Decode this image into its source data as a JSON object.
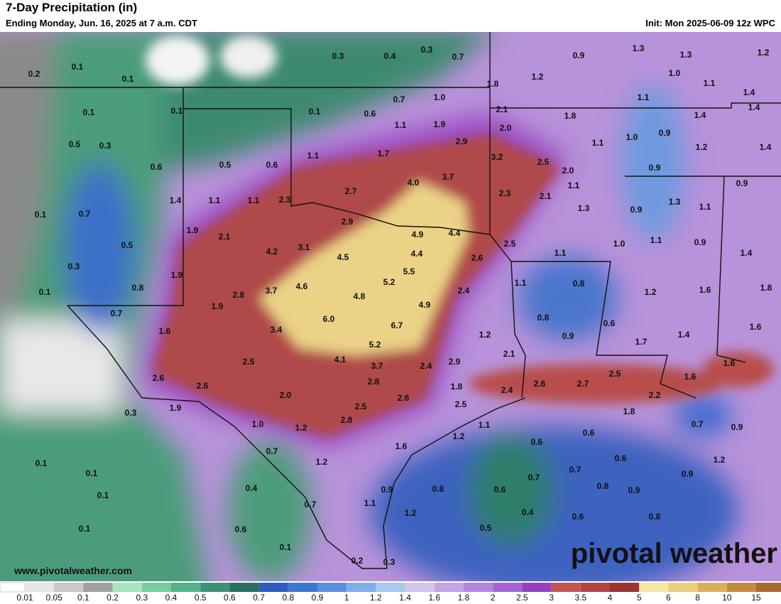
{
  "header": {
    "title": "7-Day Precipitation (in)",
    "subtitle": "Ending Monday, Jun. 16, 2025 at 7 a.m. CDT",
    "init": "Init: Mon 2025-06-09 12z WPC"
  },
  "labels": [
    "0.3",
    "0.4",
    "0.3",
    "0.7",
    "0.9",
    "1.3",
    "1.3",
    "1.2",
    "0.2",
    "0.1",
    "0.1",
    "1.2",
    "1.0",
    "1.1",
    "1.8",
    "1.4",
    "0.7",
    "1.0",
    "1.1",
    "0.1",
    "0.1",
    "0.1",
    "0.6",
    "2.1",
    "1.8",
    "1.4",
    "1.4",
    "1.1",
    "1.9",
    "2.0",
    "0.5",
    "0.3",
    "2.9",
    "1.1",
    "1.0",
    "0.9",
    "1.2",
    "1.4",
    "1.1",
    "1.7",
    "3.2",
    "0.6",
    "0.5",
    "0.6",
    "2.5",
    "2.0",
    "0.9",
    "3.7",
    "4.0",
    "0.9",
    "2.7",
    "2.3",
    "2.1",
    "1.1",
    "1.4",
    "1.1",
    "1.1",
    "2.3",
    "1.3",
    "1.3",
    "0.9",
    "1.1",
    "0.1",
    "0.7",
    "2.9",
    "4.9",
    "4.4",
    "1.9",
    "2.1",
    "1.1",
    "0.9",
    "2.5",
    "1.0",
    "0.5",
    "4.2",
    "3.1",
    "4.4",
    "1.4",
    "4.5",
    "2.6",
    "1.1",
    "0.3",
    "5.5",
    "1.9",
    "5.2",
    "1.1",
    "0.8",
    "0.1",
    "0.8",
    "2.8",
    "3.7",
    "4.6",
    "2.4",
    "1.2",
    "1.6",
    "1.8",
    "4.8",
    "1.9",
    "4.9",
    "0.7",
    "6.0",
    "0.8",
    "0.6",
    "6.7",
    "1.6",
    "3.4",
    "1.2",
    "0.9",
    "1.4",
    "1.6",
    "5.2",
    "1.7",
    "2.1",
    "4.1",
    "2.5",
    "2.9",
    "1.6",
    "3.7",
    "2.4",
    "2.5",
    "2.6",
    "2.8",
    "2.6",
    "1.8",
    "2.6",
    "2.7",
    "2.4",
    "1.6",
    "2.0",
    "2.2",
    "2.6",
    "2.5",
    "1.9",
    "2.5",
    "1.8",
    "0.3",
    "2.8",
    "1.0",
    "1.1",
    "0.7",
    "0.9",
    "1.2",
    "0.6",
    "1.2",
    "0.6",
    "1.6",
    "0.7",
    "0.6",
    "1.2",
    "0.1",
    "1.2",
    "0.7",
    "0.1",
    "0.9",
    "0.7",
    "0.4",
    "0.9",
    "0.8",
    "0.6",
    "0.8",
    "0.9",
    "0.1",
    "0.7",
    "1.1",
    "1.2",
    "0.4",
    "0.6",
    "0.8",
    "0.1",
    "0.6",
    "0.5",
    "0.1",
    "0.2",
    "0.3"
  ],
  "legend": {
    "ticks": [
      0.01,
      0.05,
      0.1,
      0.2,
      0.3,
      0.4,
      0.5,
      0.6,
      0.7,
      0.8,
      0.9,
      1,
      1.2,
      1.4,
      1.6,
      1.8,
      2,
      2.5,
      3,
      3.5,
      4,
      5,
      6,
      8,
      10,
      15
    ],
    "colors": [
      "#e6e6e6",
      "#c8c8c8",
      "#a0a0a0",
      "#a8e4c0",
      "#78cca0",
      "#56b088",
      "#3c9078",
      "#2a7062",
      "#2e5cbc",
      "#3e76ce",
      "#5a90dc",
      "#80acea",
      "#a8c8f0",
      "#d4c6ee",
      "#c4a4e6",
      "#b484de",
      "#a464d4",
      "#9440c0",
      "#c45454",
      "#b04444",
      "#983434",
      "#f4e6a4",
      "#ecce80",
      "#dcae5c",
      "#c48a40",
      "#a86a30"
    ]
  },
  "footer": {
    "url": "www.pivotalweather.com",
    "logo": "pivotal weather"
  }
}
